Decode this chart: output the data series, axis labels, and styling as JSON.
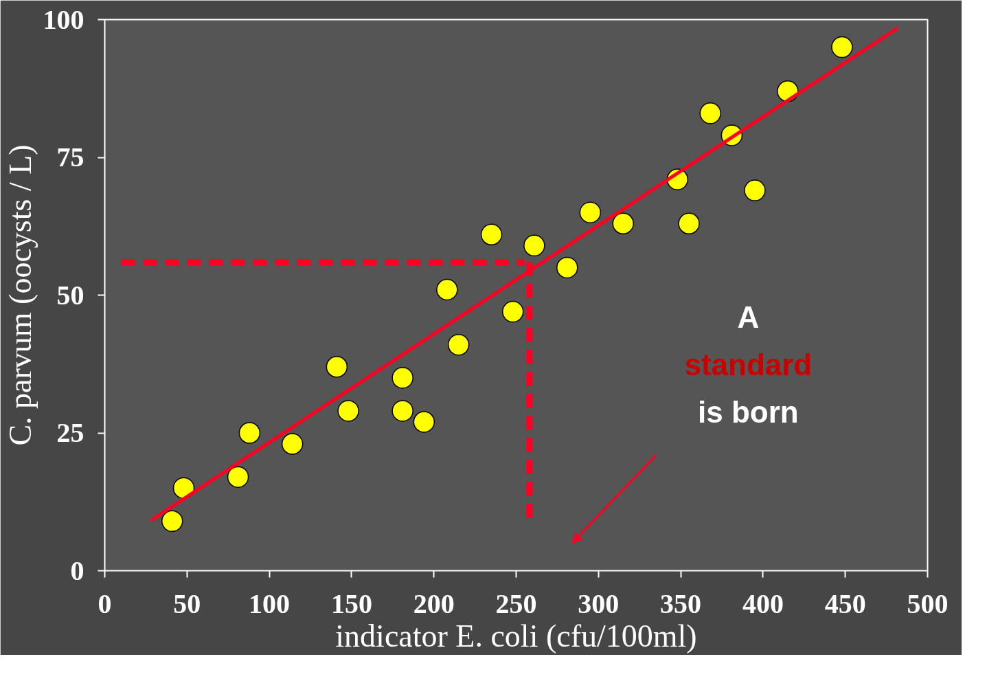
{
  "chart_data": {
    "type": "scatter",
    "xlabel": "indicator E. coli (cfu/100ml)",
    "ylabel": "C. parvum (oocysts / L)",
    "xlim": [
      0,
      500
    ],
    "ylim": [
      0,
      100
    ],
    "xticks": [
      0,
      50,
      100,
      150,
      200,
      250,
      300,
      350,
      400,
      450,
      500
    ],
    "yticks": [
      0,
      25,
      50,
      75,
      100
    ],
    "grid": false,
    "marker": "circle",
    "series": [
      {
        "color": "#ffff00",
        "x": [
          41,
          48,
          81,
          88,
          114,
          141,
          148,
          181,
          181,
          194,
          208,
          215,
          235,
          248,
          261,
          281,
          295,
          315,
          348,
          355,
          368,
          381,
          395,
          415,
          448
        ],
        "values": [
          9,
          15,
          17,
          25,
          23,
          37,
          29,
          35,
          29,
          27,
          51,
          41,
          61,
          47,
          59,
          55,
          65,
          63,
          71,
          63,
          83,
          79,
          69,
          87,
          95
        ]
      },
      {
        "type": "line",
        "color": "#ff0022",
        "x": [
          28,
          482
        ],
        "values": [
          9.1,
          98.5
        ],
        "line_style": "solid",
        "marker": "none"
      },
      {
        "type": "line",
        "color": "#ff0022",
        "x": [
          10,
          255
        ],
        "values": [
          56,
          56
        ],
        "line_style": "dashed",
        "marker": "none"
      },
      {
        "type": "line",
        "color": "#ff0022",
        "x": [
          258,
          258
        ],
        "values": [
          56,
          9
        ],
        "line_style": "dashed",
        "marker": "none"
      }
    ],
    "annotations": [
      "A standard is born"
    ]
  }
}
